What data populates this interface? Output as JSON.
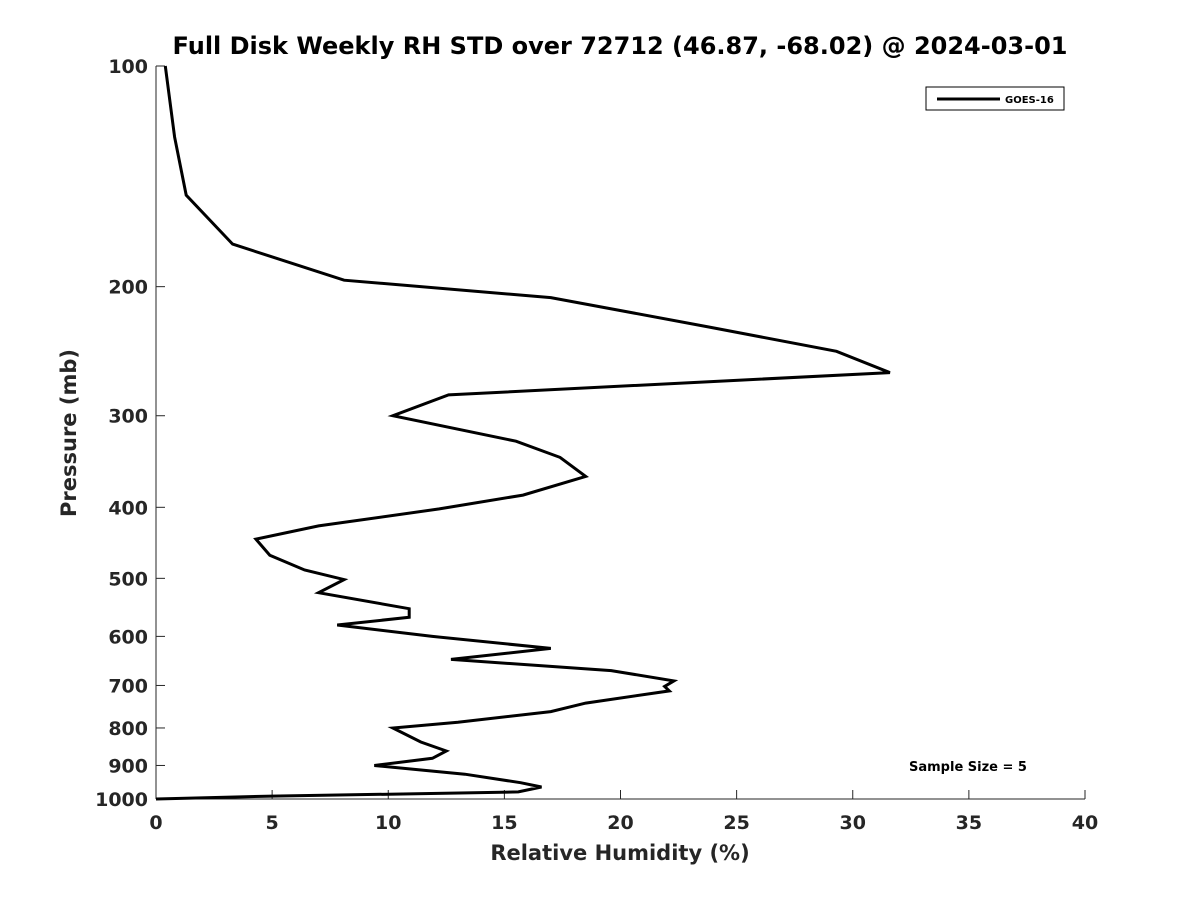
{
  "chart_data": {
    "type": "line",
    "title": "Full Disk Weekly RH STD over 72712 (46.87, -68.02) @ 2024-03-01",
    "xlabel": "Relative Humidity (%)",
    "ylabel": "Pressure (mb)",
    "xlim": [
      0,
      40
    ],
    "ylim": [
      1000,
      100
    ],
    "y_scale": "log",
    "x_ticks": [
      0,
      5,
      10,
      15,
      20,
      25,
      30,
      35,
      40
    ],
    "y_ticks": [
      100,
      200,
      300,
      400,
      500,
      600,
      700,
      800,
      900,
      1000
    ],
    "grid": false,
    "legend_position": "top-right",
    "series": [
      {
        "name": "GOES-16",
        "color": "#000000",
        "points": [
          [
            0.4,
            100
          ],
          [
            0.8,
            125
          ],
          [
            1.3,
            150
          ],
          [
            3.3,
            175
          ],
          [
            8.1,
            196
          ],
          [
            17.0,
            207
          ],
          [
            23.8,
            227
          ],
          [
            29.3,
            245
          ],
          [
            31.6,
            262
          ],
          [
            12.6,
            281
          ],
          [
            10.2,
            300
          ],
          [
            15.5,
            325
          ],
          [
            17.4,
            342
          ],
          [
            18.5,
            363
          ],
          [
            15.8,
            385
          ],
          [
            12.2,
            402
          ],
          [
            7.0,
            424
          ],
          [
            4.3,
            442
          ],
          [
            4.9,
            465
          ],
          [
            6.4,
            487
          ],
          [
            8.1,
            502
          ],
          [
            7.0,
            523
          ],
          [
            10.9,
            550
          ],
          [
            10.9,
            565
          ],
          [
            7.8,
            579
          ],
          [
            11.9,
            600
          ],
          [
            17.0,
            623
          ],
          [
            12.7,
            645
          ],
          [
            19.6,
            668
          ],
          [
            22.3,
            690
          ],
          [
            21.9,
            702
          ],
          [
            22.1,
            712
          ],
          [
            18.5,
            740
          ],
          [
            17.0,
            760
          ],
          [
            13.0,
            786
          ],
          [
            10.2,
            800
          ],
          [
            11.4,
            836
          ],
          [
            12.5,
            860
          ],
          [
            11.9,
            880
          ],
          [
            9.4,
            900
          ],
          [
            13.3,
            925
          ],
          [
            15.7,
            950
          ],
          [
            16.6,
            963
          ],
          [
            15.6,
            978
          ],
          [
            10.0,
            985
          ],
          [
            5.0,
            991
          ],
          [
            0.0,
            1000
          ]
        ]
      }
    ],
    "annotation": "Sample Size = 5"
  }
}
